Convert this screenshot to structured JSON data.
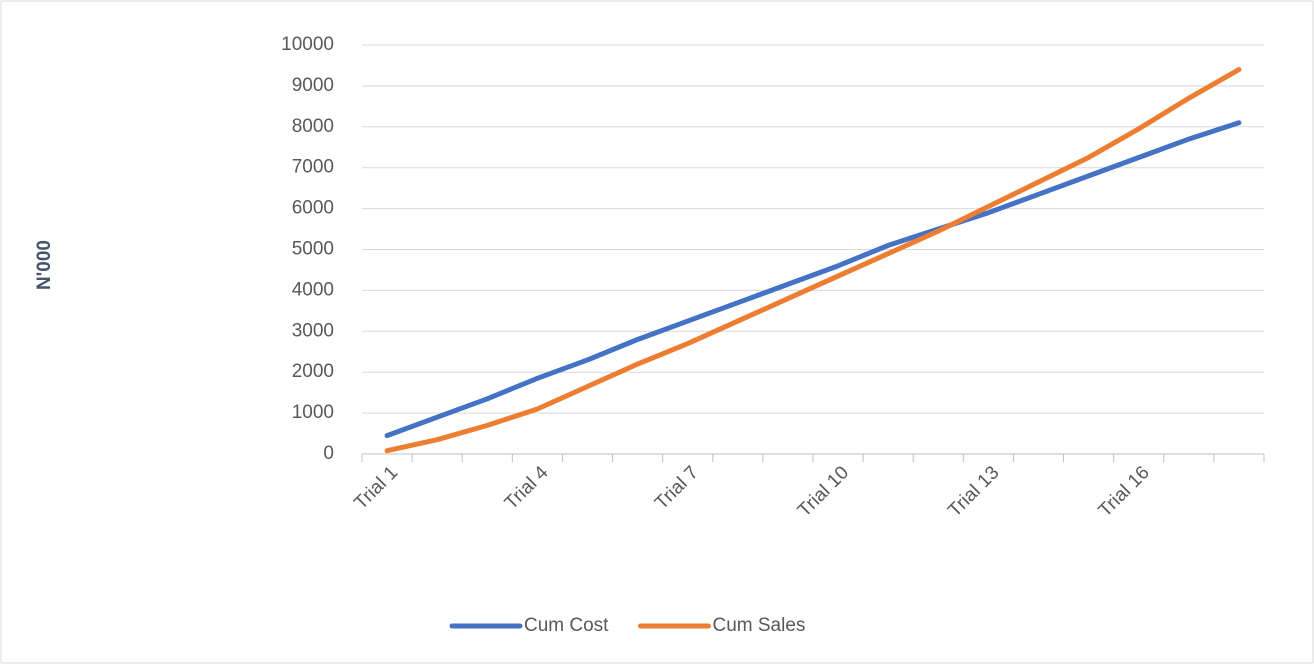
{
  "chart_data": {
    "type": "line",
    "y_label": "N'000",
    "categories": [
      "Trial 1",
      null,
      null,
      "Trial 4",
      null,
      null,
      "Trial 7",
      null,
      null,
      "Trial 10",
      null,
      null,
      "Trial 13",
      null,
      null,
      "Trial 16",
      null,
      null
    ],
    "series": [
      {
        "name": "Cum Cost",
        "color": "#4472c4",
        "values": [
          450,
          900,
          1350,
          1850,
          2300,
          2800,
          3250,
          3700,
          4150,
          4600,
          5100,
          5500,
          5900,
          6350,
          6800,
          7250,
          7700,
          8100
        ]
      },
      {
        "name": "Cum Sales",
        "color": "#ed7d31",
        "values": [
          80,
          350,
          700,
          1100,
          1650,
          2200,
          2700,
          3250,
          3800,
          4350,
          4900,
          5450,
          6050,
          6650,
          7250,
          7950,
          8700,
          9400
        ]
      }
    ],
    "ylim": [
      0,
      10000
    ],
    "yticks": [
      0,
      1000,
      2000,
      3000,
      4000,
      5000,
      6000,
      7000,
      8000,
      9000,
      10000
    ],
    "grid": true,
    "legend": "bottom"
  }
}
